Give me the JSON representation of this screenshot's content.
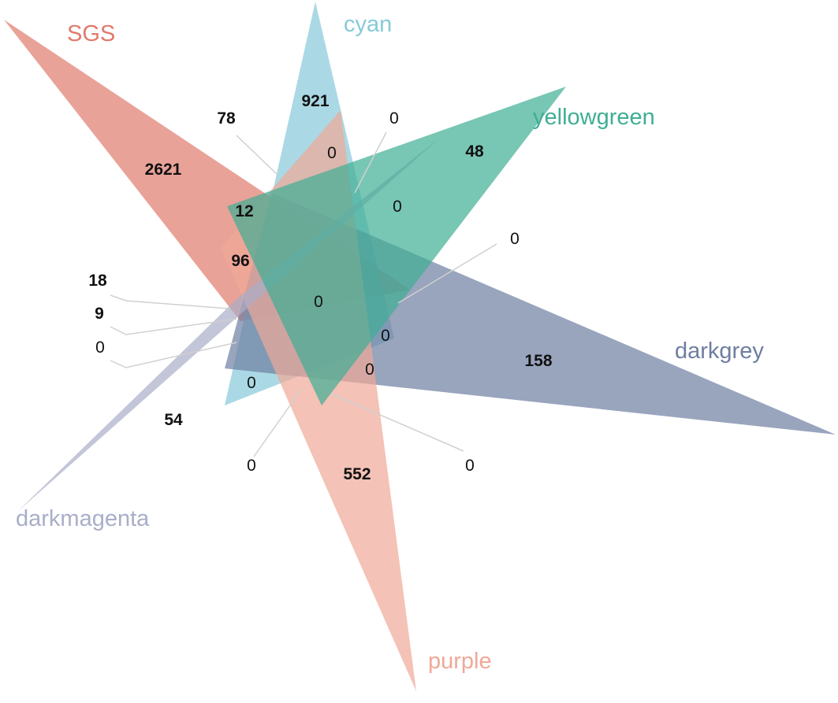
{
  "sets": [
    {
      "name": "SGS",
      "color": "#e07a6c"
    },
    {
      "name": "cyan",
      "color": "#86c9da"
    },
    {
      "name": "yellowgreen",
      "color": "#3fae94"
    },
    {
      "name": "darkgrey",
      "color": "#6e7ea1"
    },
    {
      "name": "darkmagenta",
      "color": "#a9aec8"
    },
    {
      "name": "purple",
      "color": "#f0a897"
    }
  ],
  "regions": [
    {
      "id": "sgs-only",
      "value": "2621",
      "bold": true
    },
    {
      "id": "cyan-only",
      "value": "921",
      "bold": true
    },
    {
      "id": "yellowgreen-only",
      "value": "48",
      "bold": true
    },
    {
      "id": "darkgrey-only",
      "value": "158",
      "bold": true
    },
    {
      "id": "darkmagenta-only",
      "value": "54",
      "bold": true
    },
    {
      "id": "purple-only",
      "value": "552",
      "bold": true
    },
    {
      "id": "sgs-cyan-pair",
      "value": "78",
      "bold": true
    },
    {
      "id": "sgs-yellowgreen-cyan",
      "value": "12",
      "bold": true
    },
    {
      "id": "sgs-purple",
      "value": "96",
      "bold": true
    },
    {
      "id": "left-18",
      "value": "18",
      "bold": true
    },
    {
      "id": "left-9",
      "value": "9",
      "bold": true
    },
    {
      "id": "left-0",
      "value": "0",
      "bold": false
    },
    {
      "id": "cyan-sgs-inner",
      "value": "0",
      "bold": false
    },
    {
      "id": "cyan-yellowgreen-leader",
      "value": "0",
      "bold": false
    },
    {
      "id": "yellowgreen-darkgrey",
      "value": "0",
      "bold": false
    },
    {
      "id": "right-leader-0",
      "value": "0",
      "bold": false
    },
    {
      "id": "center",
      "value": "0",
      "bold": false
    },
    {
      "id": "center-right",
      "value": "0",
      "bold": false
    },
    {
      "id": "center-lower",
      "value": "0",
      "bold": false
    },
    {
      "id": "lower-left-inner",
      "value": "0",
      "bold": false
    },
    {
      "id": "bottom-left-leader",
      "value": "0",
      "bold": false
    },
    {
      "id": "bottom-right-leader",
      "value": "0",
      "bold": false
    }
  ]
}
